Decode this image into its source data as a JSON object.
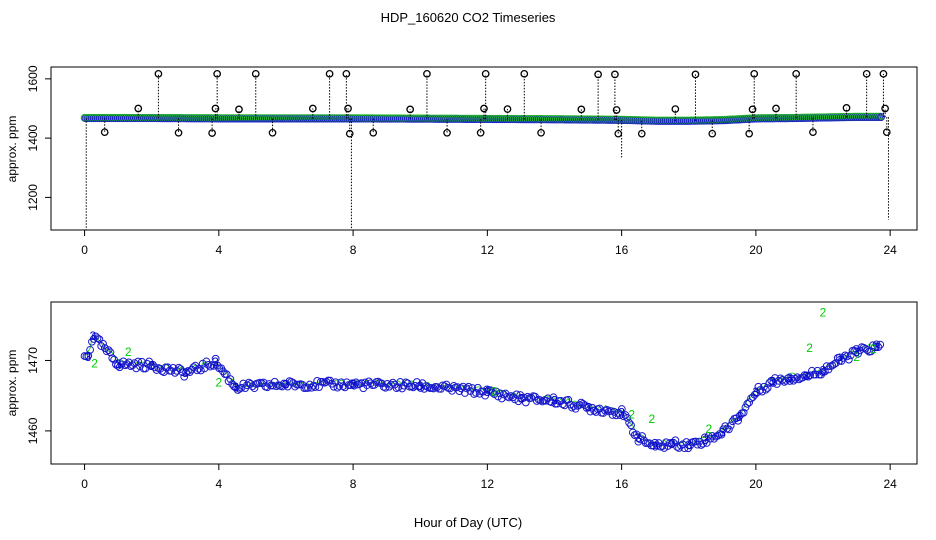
{
  "chart_data": [
    {
      "type": "scatter",
      "title": "HDP_160620  CO2 Timeseries",
      "ylabel": "approx. ppm",
      "xlim": [
        -1,
        24.8
      ],
      "ylim": [
        1090,
        1640
      ],
      "xticks": [
        "0",
        "4",
        "8",
        "12",
        "16",
        "20",
        "24"
      ],
      "yticks": [
        "1200",
        "1400",
        "1600"
      ],
      "baseline": {
        "x": [
          0,
          2,
          4,
          6,
          8,
          10,
          12,
          14,
          16,
          17,
          18,
          19,
          20,
          21,
          22,
          23,
          23.7
        ],
        "y": [
          1467,
          1467,
          1466,
          1466,
          1466,
          1465,
          1464,
          1463,
          1461,
          1458,
          1458,
          1460,
          1466,
          1467,
          1469,
          1471,
          1471
        ]
      },
      "outliers": {
        "x": [
          0.6,
          1.6,
          2.2,
          2.8,
          3.8,
          3.9,
          3.95,
          4.6,
          5.1,
          5.6,
          6.8,
          7.3,
          7.8,
          7.85,
          7.9,
          8.6,
          9.7,
          10.2,
          10.8,
          11.8,
          11.9,
          11.95,
          12.6,
          13.1,
          13.6,
          14.8,
          15.3,
          15.8,
          15.85,
          15.9,
          16.6,
          17.6,
          18.2,
          18.7,
          19.8,
          19.9,
          19.95,
          20.6,
          21.2,
          21.7,
          22.7,
          23.3,
          23.8,
          23.85,
          23.9
        ],
        "y": [
          1420,
          1500,
          1617,
          1418,
          1417,
          1500,
          1617,
          1497,
          1617,
          1418,
          1500,
          1617,
          1617,
          1500,
          1415,
          1418,
          1497,
          1617,
          1418,
          1418,
          1500,
          1617,
          1498,
          1617,
          1418,
          1497,
          1615,
          1615,
          1495,
          1415,
          1415,
          1498,
          1615,
          1415,
          1415,
          1497,
          1617,
          1500,
          1617,
          1420,
          1502,
          1617,
          1617,
          1500,
          1420
        ]
      },
      "dropouts": {
        "x": [
          0.05,
          7.95,
          16.0,
          23.95
        ],
        "y": [
          1090,
          1090,
          1335,
          1125
        ]
      }
    },
    {
      "type": "scatter",
      "xlabel": "Hour of Day (UTC)",
      "ylabel": "approx. ppm",
      "xlim": [
        -1,
        24.8
      ],
      "ylim": [
        1455.3,
        1478.3
      ],
      "xticks": [
        "0",
        "4",
        "8",
        "12",
        "16",
        "20",
        "24"
      ],
      "yticks": [
        "1460",
        "1470"
      ],
      "series": [
        {
          "marker": "2",
          "color": "#00cc00",
          "x": [
            0.3,
            1.3,
            4.0,
            12.2,
            16.3,
            16.9,
            18.6,
            21.6,
            22.0,
            23.0,
            23.5
          ],
          "y": [
            1469.6,
            1471.2,
            1466.9,
            1465.6,
            1462.3,
            1461.7,
            1460.3,
            1471.8,
            1476.8,
            1470.5,
            1471.6
          ]
        },
        {
          "marker": "3",
          "color": "#0000cc",
          "x": [
            0.1,
            0.25,
            1.0,
            2.0,
            3.0,
            3.9,
            4.5,
            6.0,
            8.0,
            10.0,
            12.0,
            13.0,
            14.0,
            15.0,
            16.0,
            16.5,
            17.0,
            17.5,
            18.0,
            18.5,
            19.0,
            19.5,
            20.0,
            20.5,
            21.0,
            21.5,
            22.0,
            22.5,
            23.0,
            23.6
          ],
          "y": [
            1470.5,
            1473.5,
            1469.5,
            1469.3,
            1468.2,
            1469.8,
            1466.2,
            1466.6,
            1466.6,
            1466.4,
            1465.5,
            1464.6,
            1464.3,
            1463.3,
            1462.6,
            1459.0,
            1457.8,
            1458.2,
            1458.0,
            1458.7,
            1459.8,
            1462.0,
            1465.5,
            1467.0,
            1467.5,
            1467.8,
            1468.6,
            1470.0,
            1471.2,
            1471.9
          ]
        }
      ]
    }
  ]
}
